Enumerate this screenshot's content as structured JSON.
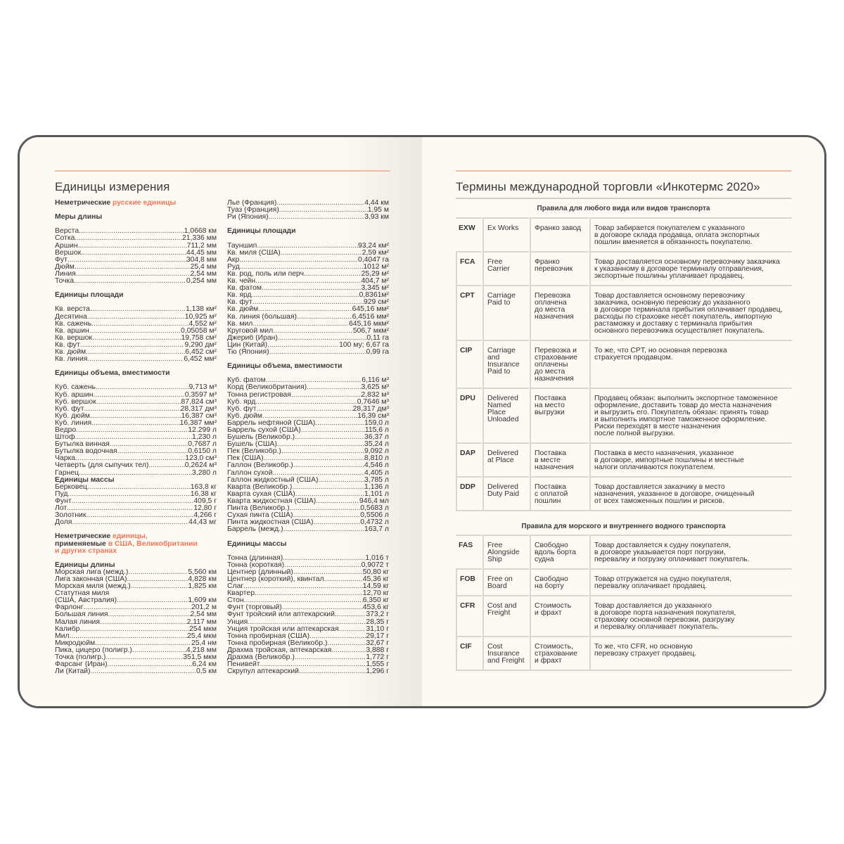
{
  "left_page": {
    "title": "Единицы измерения",
    "col1": [
      {
        "section": [
          {
            "t": "Неметрические "
          },
          {
            "t": "русские единицы",
            "accent": true
          }
        ]
      },
      {
        "heading": "Меры длины",
        "items": [
          [
            "Верста",
            "1,0668 км"
          ],
          [
            "Сотка",
            "21,336 мм"
          ],
          [
            "Аршин",
            "711,2 мм"
          ],
          [
            "Вершок",
            "44,45 мм"
          ],
          [
            "Фут",
            "304,8 мм"
          ],
          [
            "Дюйм",
            "25,4 мм"
          ],
          [
            "Линия",
            "2,54 мм"
          ],
          [
            "Точка",
            "0,254 мм"
          ]
        ]
      },
      {
        "heading": "Единицы площади",
        "items": [
          [
            "Кв. верста",
            "1,138 км²"
          ],
          [
            "Десятина",
            "10,925 м²"
          ],
          [
            "Кв. сажень",
            "4,552 м²"
          ],
          [
            "Кв. аршин",
            "0,05058 м²"
          ],
          [
            "Кв. вершок",
            "19,758 см²"
          ],
          [
            "Кв. фут",
            "9,290 дм²"
          ],
          [
            "Кв. дюйм",
            "6,452 см²"
          ],
          [
            "Кв. линия",
            "6,452 мм²"
          ]
        ]
      },
      {
        "heading": "Единицы объема, вместимости",
        "items": [
          [
            "Куб. сажень",
            "9,713 м³"
          ],
          [
            "Куб. аршин",
            "0,3597 м³"
          ],
          [
            "Куб. вершок",
            "87,824 см³"
          ],
          [
            "Куб. фут",
            "28,317 дм³"
          ],
          [
            "Куб. дюйм",
            "16,387 см³"
          ],
          [
            "Куб. линия",
            "16,387 мм³"
          ],
          [
            "Ведро",
            "12.299 л"
          ],
          [
            "Штоф",
            "1,230 л"
          ],
          [
            "Бутылка винная",
            "0,7687 л"
          ],
          [
            "Бутылка водочная",
            "0,6150 л"
          ],
          [
            "Чарка",
            "123,0 см³"
          ],
          [
            "Четверть (для сыпучих тел)",
            "0,2624 м³"
          ],
          [
            "Гарнец",
            "3,280 л"
          ]
        ]
      },
      {
        "heading": "Единицы массы",
        "items": [
          [
            "Берковец",
            "163,8 кг"
          ],
          [
            "Пуд",
            "16,38 кг"
          ],
          [
            "Фунт",
            "409,5 г"
          ],
          [
            "Лот",
            "12,80 г"
          ],
          [
            "Золотник",
            "4,266 г"
          ],
          [
            "Доля",
            "44,43 мг"
          ]
        ]
      },
      {
        "section": [
          {
            "t": "Неметрические "
          },
          {
            "t": "единицы,",
            "accent": true
          },
          {
            "br": true
          },
          {
            "t": "применяемые "
          },
          {
            "t": "в США, Великобритании",
            "accent": true
          },
          {
            "br": true
          },
          {
            "t": "и других странах",
            "accent": true
          }
        ]
      },
      {
        "heading": "Единицы длины",
        "items": [
          [
            "Морская лига (межд.)",
            "5,560 км"
          ],
          [
            "Лига законная (США)",
            "4,828 км"
          ],
          [
            "Морская миля (межд.)",
            "1,825 км"
          ],
          [
            "Статутная миля",
            ""
          ],
          [
            "(США, Австралия)",
            "1,609 км"
          ],
          [
            "Фарлонг",
            "201,2 м"
          ],
          [
            "Большая линия",
            "2,54 мм"
          ],
          [
            "Малая линия",
            "2,117 мм"
          ],
          [
            "Калибр",
            "254 мкм"
          ],
          [
            "Мил",
            "25,4 мкм"
          ],
          [
            "Микродюйм",
            "25,4 нм"
          ],
          [
            "Пика, цицеро (полигр.)",
            "4,218 мм"
          ],
          [
            "Точка (полигр.)",
            "351,5 мкм"
          ],
          [
            "Фарсанг (Иран)",
            "6,24 км"
          ],
          [
            "Ли (Китай)",
            "0,5 км"
          ]
        ]
      }
    ],
    "col2": [
      {
        "items": [
          [
            "Лье (Франция)",
            "4,44 км"
          ],
          [
            "Туаз (Франция)",
            "1,95 м"
          ],
          [
            "Ри (Япония)",
            "3,93 км"
          ]
        ]
      },
      {
        "heading": "Единицы площади",
        "items": [
          [
            "Тауншип",
            "93,24 км²"
          ],
          [
            "Кв. миля (США)",
            "2,59 км²"
          ],
          [
            "Акр",
            "0,4047 га"
          ],
          [
            "Руд",
            "1012 м²"
          ],
          [
            "Кв. род, поль или перч",
            "25,29 м²"
          ],
          [
            "Кв. чейн",
            "404,7 м²"
          ],
          [
            "Кв. фатом",
            "3,345 м²"
          ],
          [
            "Кв. ярд",
            "0,8361м²"
          ],
          [
            "Кв. фут",
            "929 см²"
          ],
          [
            "Кв. дюйм",
            "645,16 мм²"
          ],
          [
            "Кв. линия (большая)",
            "6,4516 мм²"
          ],
          [
            "Кв. мил",
            "645,16 мкм²"
          ],
          [
            "Круговой мил",
            "506,7 мкм²"
          ],
          [
            "Джериб (Иран)",
            "0,11 га"
          ],
          [
            "Цин (Китай)",
            "100 му; 6,67 га"
          ],
          [
            "Тю (Япония)",
            "0,99 га"
          ]
        ]
      },
      {
        "heading": "Единицы объема, вместимости",
        "items": [
          [
            "Куб. фатом",
            "6,116 м³"
          ],
          [
            "Корд (Великобритания)",
            "3,625 м³"
          ],
          [
            "Тонна регистровая",
            "2,832 м³"
          ],
          [
            "Куб. ярд",
            "0,7646 м³"
          ],
          [
            "Куб. фут",
            "28,317 дм³"
          ],
          [
            "Куб. дюйм",
            "16,39 см³"
          ],
          [
            "Баррель нефтяной (США)",
            "159,0 л"
          ],
          [
            "Баррель сухой (США)",
            "115,6 л"
          ],
          [
            "Бушель (Великобр.)",
            "36,37 л"
          ],
          [
            "Бушель (США)",
            "35,24 л"
          ],
          [
            "Пек (Великобр.)",
            "9,092 л"
          ],
          [
            "Пек (США)",
            "8,810 л"
          ],
          [
            "Галлон (Великобр.)",
            "4,546 л"
          ],
          [
            "Галлон сухой",
            "4,405 л"
          ],
          [
            "Галлон жидкостный (США)",
            "3,785 л"
          ],
          [
            "Кварта (Великобр.)",
            "1,136 л"
          ],
          [
            "Кварта сухая (США)",
            "1,101 л"
          ],
          [
            "Кварта жидкостная (США)",
            "946,4 мл"
          ],
          [
            "Пинта (Великобр.)",
            "0,5683 л"
          ],
          [
            "Сухая пинта (США)",
            "0,5506 л"
          ],
          [
            "Пинта жидкостная (США)",
            "0,4732 л"
          ],
          [
            "Баррель (межд.)",
            "163,7 л"
          ]
        ]
      },
      {
        "heading": "Единицы массы",
        "items": [
          [
            "Тонна (длинная)",
            "1,016 т"
          ],
          [
            "Тонна (короткая)",
            "0,9072 т"
          ],
          [
            "Центнер (длинный)",
            "50,80 кг"
          ],
          [
            "Центнер (короткий), квинтал",
            "45,36 кг"
          ],
          [
            "Слаг",
            "14,59 кг"
          ],
          [
            "Квартер",
            "12,70 кг"
          ],
          [
            "Стон",
            "6,350 кг"
          ],
          [
            "Фунт (торговый)",
            "453,6 кг"
          ],
          [
            "Фунт тройский или аптекарский",
            "373,2 г"
          ],
          [
            "Унция",
            "28,35 г"
          ],
          [
            "Унция тройская или аптекарская",
            "31,10 г"
          ],
          [
            "Тонна пробирная (США)",
            "29,17 г"
          ],
          [
            "Тонна пробирная (Великобр.)",
            "32,67 г"
          ],
          [
            "Драхма тройская, аптекарская",
            "3,888 г"
          ],
          [
            "Драхма (Великобр.)",
            "1,772 г"
          ],
          [
            "Пенивейт",
            "1,555 г"
          ],
          [
            "Скрупул аптекарский",
            "1,296 г"
          ]
        ]
      }
    ]
  },
  "right_page": {
    "title": "Термины международной торговли «Инкотермс 2020»",
    "tables": [
      {
        "heading": "Правила для любого вида или видов транспорта",
        "rows": [
          [
            "EXW",
            "Ex Works",
            "Франко завод",
            "Товар забирается покупателем с указанного\nв договоре склада продавца, оплата экспортных\nпошлин вменяется в обязанность покупателю."
          ],
          [
            "FCA",
            "Free Carrier",
            "Франко\nперевозчик",
            "Товар доставляется основному перевозчику заказчика\nк указанному в договоре терминалу отправления,\nэкспортные пошлины уплачивает продавец."
          ],
          [
            "CPT",
            "Carriage\nPaid to",
            "Перевозка\nоплачена\nдо места\nназначения",
            "Товар доставляется основному перевозчику\nзаказчика, основную перевозку до указанного\nв договоре терминала прибытия оплачивает продавец,\nрасходы по страховке несёт покупатель, импортную\nрастаможку и доставку с терминала прибытия\nосновного перевозчика осуществляет покупатель."
          ],
          [
            "CIP",
            "Carriage\nand\nInsurance\nPaid to",
            "Перевозка и\nстрахование\nоплачены\nдо места\nназначения",
            "То же, что CPT, но основная перевозка\nстрахуется продавцом."
          ],
          [
            "DPU",
            "Delivered\nNamed\nPlace\nUnloaded",
            "Поставка\nна место\nвыгрузки",
            "Продавец обязан: выполнить экспортное таможенное\nоформление, доставить товар до места назначения\nи выгрузить его. Покупатель обязан: принять товар\nи выполнить импортное таможенное оформление.\nРиски переходят в месте назначения\nпосле полной выгрузки."
          ],
          [
            "DAP",
            "Delivered\nat Place",
            "Поставка\nв месте\nназначения",
            "Поставка в место назначения, указанное\nв договоре, импортные пошлины и местные\nналоги оплачиваются покупателем."
          ],
          [
            "DDP",
            "Delivered\nDuty Paid",
            "Поставка\nс оплатой\nпошлин",
            "Товар доставляется заказчику в место\nназначения, указанное в договоре, очищенный\nот всех таможенных пошлин и рисков."
          ]
        ]
      },
      {
        "heading": "Правила для морского и внутреннего водного транспорта",
        "rows": [
          [
            "FAS",
            "Free\nAlongside\nShip",
            "Свободно\nвдоль борта\nсудна",
            "Товар доставляется к судну покупателя,\nв договоре указывается порт погрузки,\nперевалку и погрузку оплачивает покупатель."
          ],
          [
            "FOB",
            "Free on\nBoard",
            "Свободно\nна борту",
            "Товар отгружается на судно покупателя,\nперевалку оплачивает продавец."
          ],
          [
            "CFR",
            "Cost and\nFreight",
            "Стоимость\nи фрахт",
            "Товар доставляется до указанного\nв договоре порта назначения покупателя,\nстраховку основной перевозки, разгрузку\nи перевалку оплачивает покупатель."
          ],
          [
            "CIF",
            "Cost\nInsurance\nand Freight",
            "Стоимость,\nстрахование\nи фрахт",
            "То же, что CFR, но основную\nперевозку страхует продавец."
          ]
        ]
      }
    ]
  },
  "colors": {
    "accent": "#f0775a",
    "rule": "#f4b8a4",
    "cover": "#58585a",
    "paper": "#fcfaf2"
  }
}
